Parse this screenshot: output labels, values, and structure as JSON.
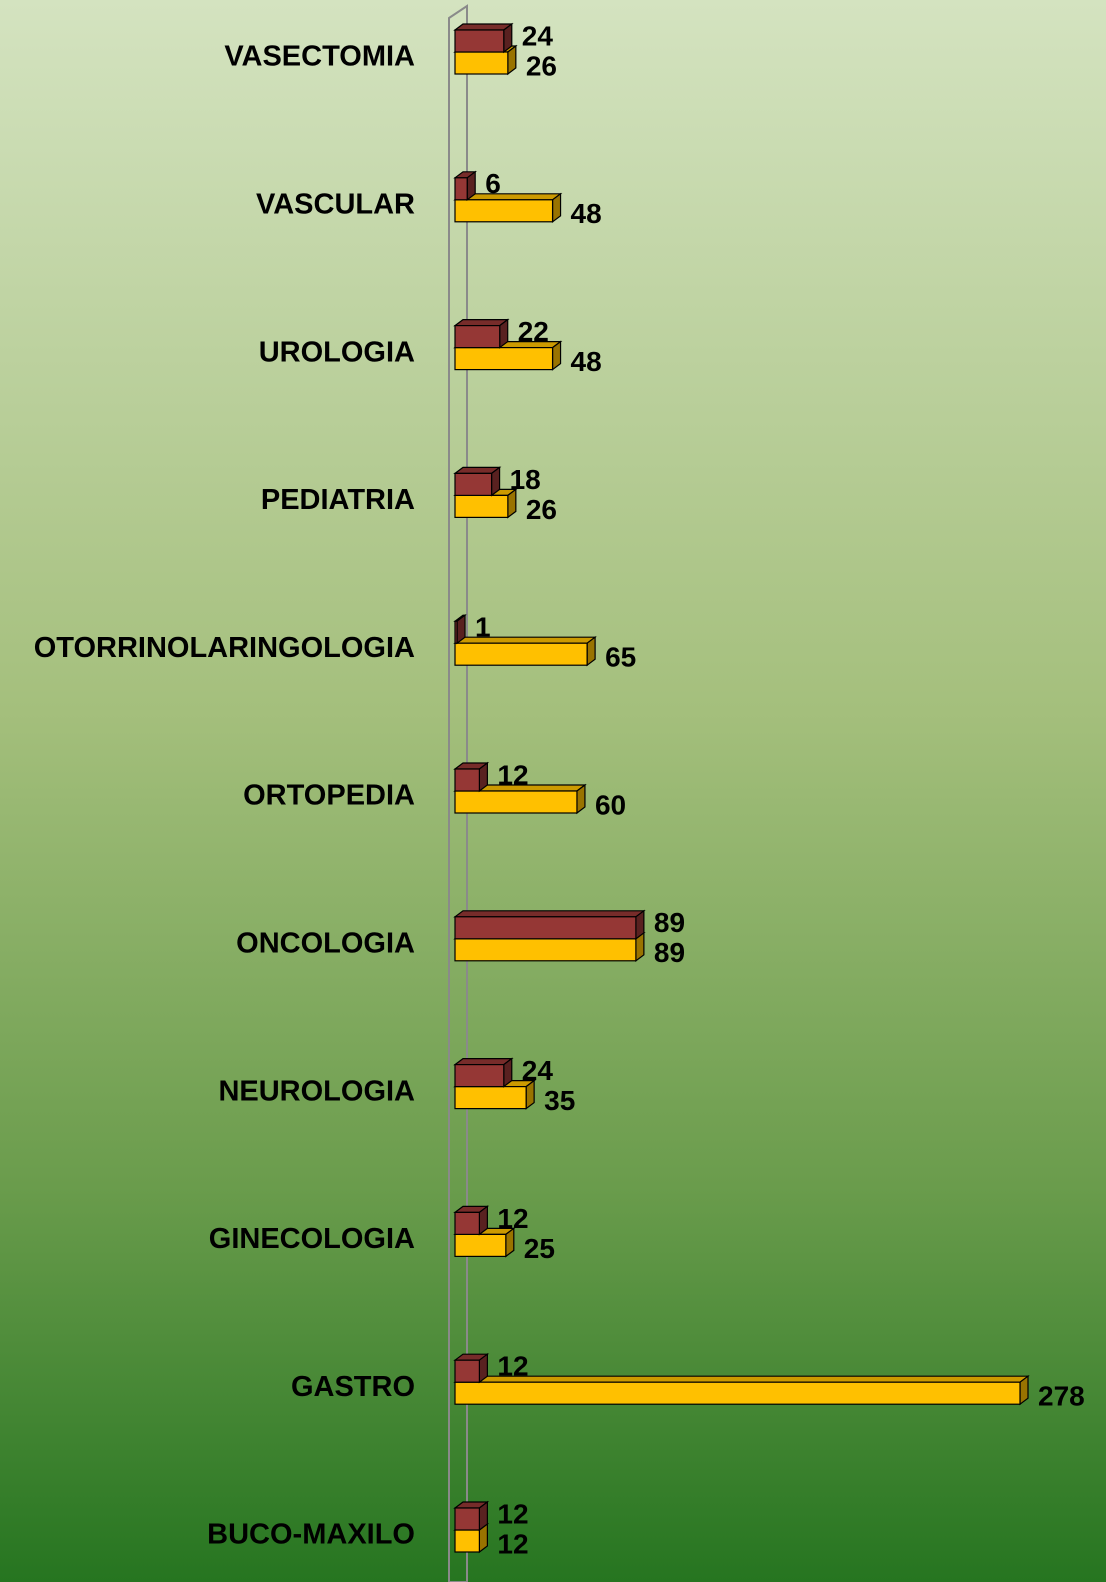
{
  "chart_data": {
    "type": "bar",
    "orientation": "horizontal",
    "categories": [
      "VASECTOMIA",
      "VASCULAR",
      "UROLOGIA",
      "PEDIATRIA",
      "OTORRINOLARINGOLOGIA",
      "ORTOPEDIA",
      "ONCOLOGIA",
      "NEUROLOGIA",
      "GINECOLOGIA",
      "GASTRO",
      "BUCO-MAXILO"
    ],
    "series": [
      {
        "color": "#953735",
        "values": [
          24,
          6,
          22,
          18,
          1,
          12,
          89,
          24,
          12,
          12,
          12
        ]
      },
      {
        "color": "#ffc000",
        "values": [
          26,
          48,
          48,
          26,
          65,
          60,
          89,
          35,
          25,
          278,
          12
        ]
      }
    ]
  }
}
